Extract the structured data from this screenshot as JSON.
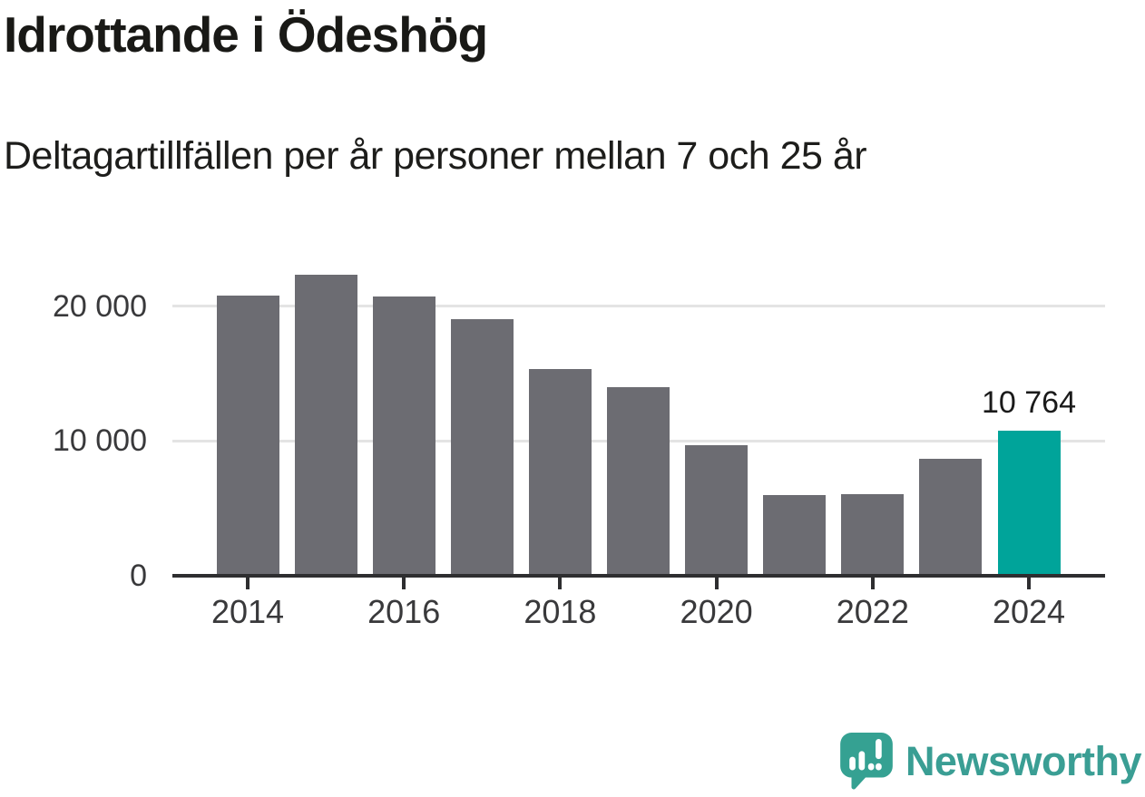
{
  "chart_data": {
    "type": "bar",
    "title": "Idrottande i Ödeshög",
    "subtitle": "Deltagartillfällen per år personer mellan 7 och 25 år",
    "categories": [
      2014,
      2015,
      2016,
      2017,
      2018,
      2019,
      2020,
      2021,
      2022,
      2023,
      2024
    ],
    "values": [
      20750,
      22350,
      20700,
      19050,
      15300,
      14000,
      9650,
      6000,
      6050,
      8700,
      10764
    ],
    "highlight_index": 10,
    "highlight_value_label": "10 764",
    "yticks": [
      {
        "value": 0,
        "label": "0"
      },
      {
        "value": 10000,
        "label": "10 000"
      },
      {
        "value": 20000,
        "label": "20 000"
      }
    ],
    "xticks": [
      {
        "year": 2014,
        "label": "2014"
      },
      {
        "year": 2016,
        "label": "2016"
      },
      {
        "year": 2018,
        "label": "2018"
      },
      {
        "year": 2020,
        "label": "2020"
      },
      {
        "year": 2022,
        "label": "2022"
      },
      {
        "year": 2024,
        "label": "2024"
      }
    ],
    "ylim": [
      0,
      22500
    ],
    "grid": "horizontal",
    "legend": "none",
    "colors": {
      "bar": "#6c6c72",
      "highlight": "#00a49a",
      "axis": "#2e2e30",
      "gridline": "#e4e4e4"
    }
  },
  "branding": {
    "logo_text": "Newsworthy",
    "logo_color": "#3a9e94",
    "logo_icon": "speech-bubble-bar-chart-icon"
  }
}
